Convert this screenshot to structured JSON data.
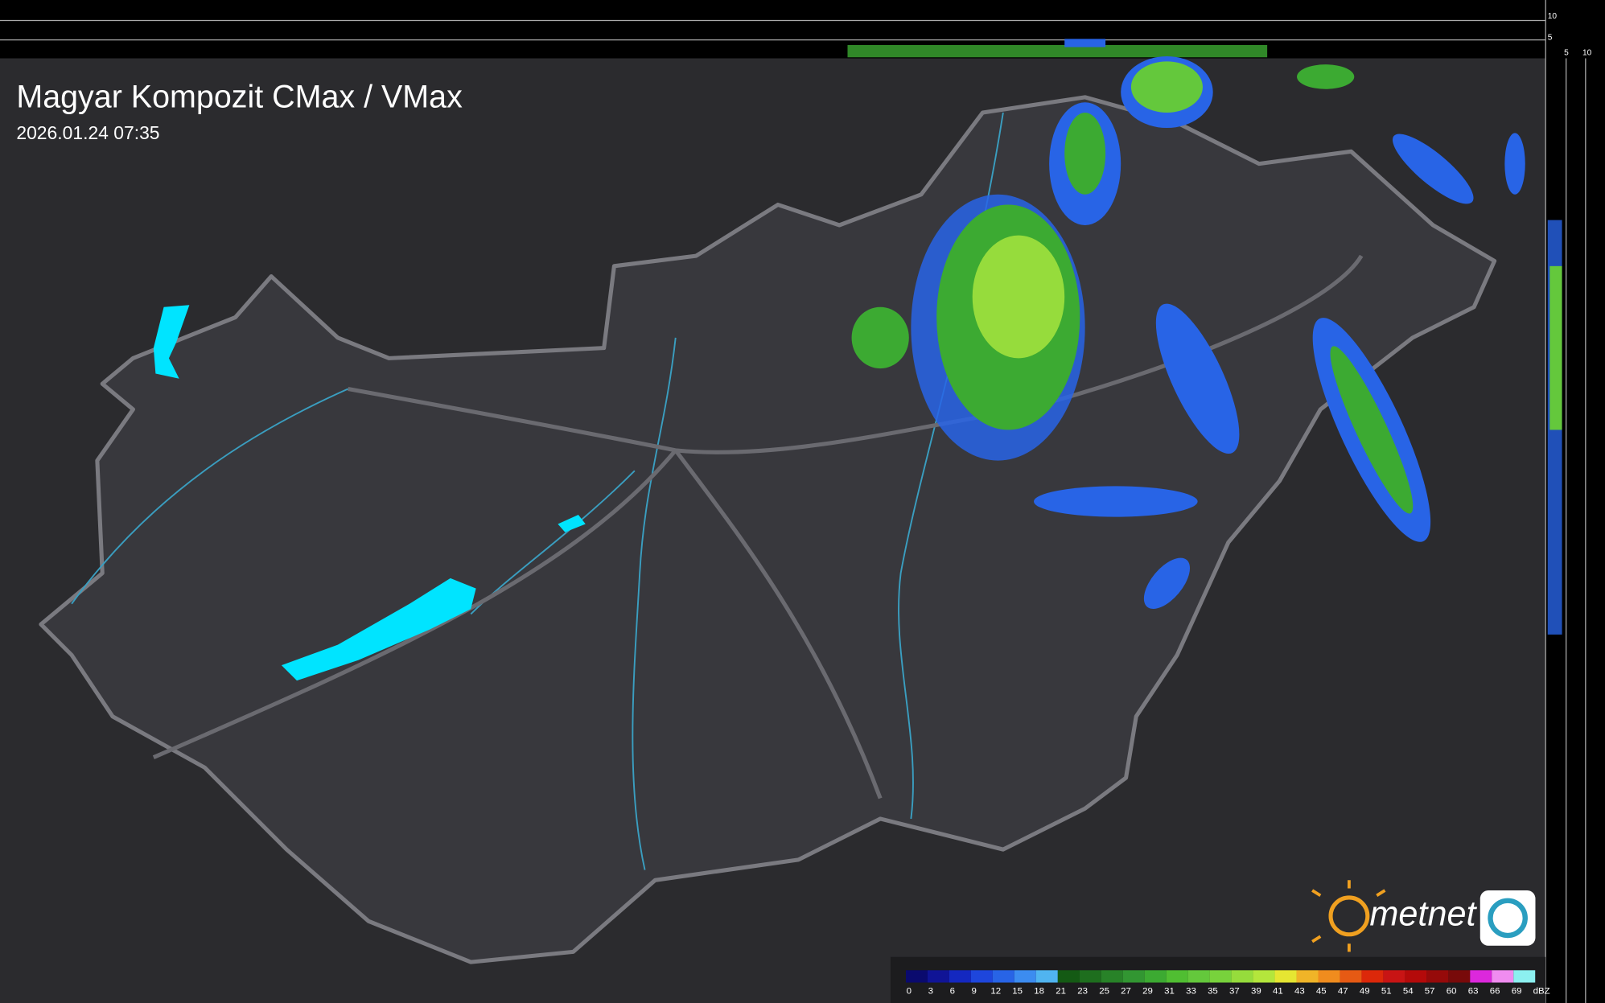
{
  "header": {
    "title": "Magyar Kompozit CMax / VMax",
    "timestamp": "2026.01.24 07:35"
  },
  "logo": {
    "text": "metnet"
  },
  "side_scale": {
    "vertical_ticks": [
      10,
      5
    ],
    "horizontal_ticks": [
      5,
      10
    ]
  },
  "legend": {
    "unit": "dBZ",
    "ticks": [
      0,
      3,
      6,
      9,
      12,
      15,
      18,
      21,
      23,
      25,
      27,
      29,
      31,
      33,
      35,
      37,
      39,
      41,
      43,
      45,
      47,
      49,
      51,
      54,
      57,
      60,
      63,
      66,
      69
    ],
    "colors": [
      "#0a0a6e",
      "#101496",
      "#1428c0",
      "#1e46dc",
      "#2864e6",
      "#3c8cf0",
      "#50b4f0",
      "#145a14",
      "#1e6e1e",
      "#288228",
      "#329632",
      "#3caa32",
      "#50be32",
      "#64c83c",
      "#78d23c",
      "#96dc3c",
      "#b4e63c",
      "#e6e632",
      "#f0b428",
      "#f08c1e",
      "#e65a14",
      "#dc280a",
      "#c81414",
      "#b40a0a",
      "#960a0a",
      "#780a0a",
      "#dc28dc",
      "#f08cf0",
      "#8cf0f0"
    ]
  }
}
